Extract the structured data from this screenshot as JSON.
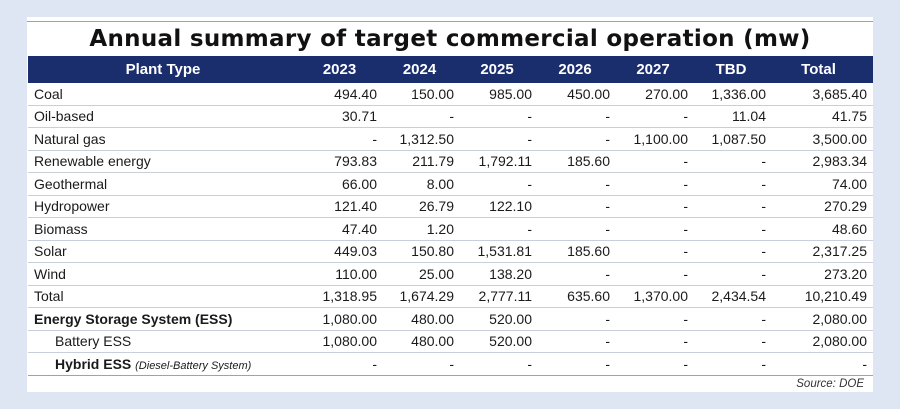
{
  "title": "Annual summary of target commercial operation (mw)",
  "columns": [
    "Plant Type",
    "2023",
    "2024",
    "2025",
    "2026",
    "2027",
    "TBD",
    "Total"
  ],
  "rows": [
    {
      "name": "Coal",
      "values": [
        "494.40",
        "150.00",
        "985.00",
        "450.00",
        "270.00",
        "1,336.00",
        "3,685.40"
      ]
    },
    {
      "name": "Oil-based",
      "values": [
        "30.71",
        "-",
        "-",
        "-",
        "-",
        "11.04",
        "41.75"
      ]
    },
    {
      "name": "Natural gas",
      "values": [
        "-",
        "1,312.50",
        "-",
        "-",
        "1,100.00",
        "1,087.50",
        "3,500.00"
      ]
    },
    {
      "name": "Renewable energy",
      "values": [
        "793.83",
        "211.79",
        "1,792.11",
        "185.60",
        "-",
        "-",
        "2,983.34"
      ]
    },
    {
      "name": "Geothermal",
      "values": [
        "66.00",
        "8.00",
        "-",
        "-",
        "-",
        "-",
        "74.00"
      ]
    },
    {
      "name": "Hydropower",
      "values": [
        "121.40",
        "26.79",
        "122.10",
        "-",
        "-",
        "-",
        "270.29"
      ]
    },
    {
      "name": "Biomass",
      "values": [
        "47.40",
        "1.20",
        "-",
        "-",
        "-",
        "-",
        "48.60"
      ]
    },
    {
      "name": "Solar",
      "values": [
        "449.03",
        "150.80",
        "1,531.81",
        "185.60",
        "-",
        "-",
        "2,317.25"
      ]
    },
    {
      "name": "Wind",
      "values": [
        "110.00",
        "25.00",
        "138.20",
        "-",
        "-",
        "-",
        "273.20"
      ]
    },
    {
      "name": "Total",
      "values": [
        "1,318.95",
        "1,674.29",
        "2,777.11",
        "635.60",
        "1,370.00",
        "2,434.54",
        "10,210.49"
      ]
    },
    {
      "name": "Energy Storage System (ESS)",
      "values": [
        "1,080.00",
        "480.00",
        "520.00",
        "-",
        "-",
        "-",
        "2,080.00"
      ]
    },
    {
      "name": "Battery ESS",
      "values": [
        "1,080.00",
        "480.00",
        "520.00",
        "-",
        "-",
        "-",
        "2,080.00"
      ]
    },
    {
      "name": "Hybrid ESS",
      "note": "(Diesel-Battery System)",
      "values": [
        "-",
        "-",
        "-",
        "-",
        "-",
        "-",
        "-"
      ]
    }
  ],
  "source": "Source: DOE",
  "colors": {
    "header_bg": "#1a2e6e",
    "header_text": "#ffffff",
    "page_bg": "#dfe6f3"
  }
}
